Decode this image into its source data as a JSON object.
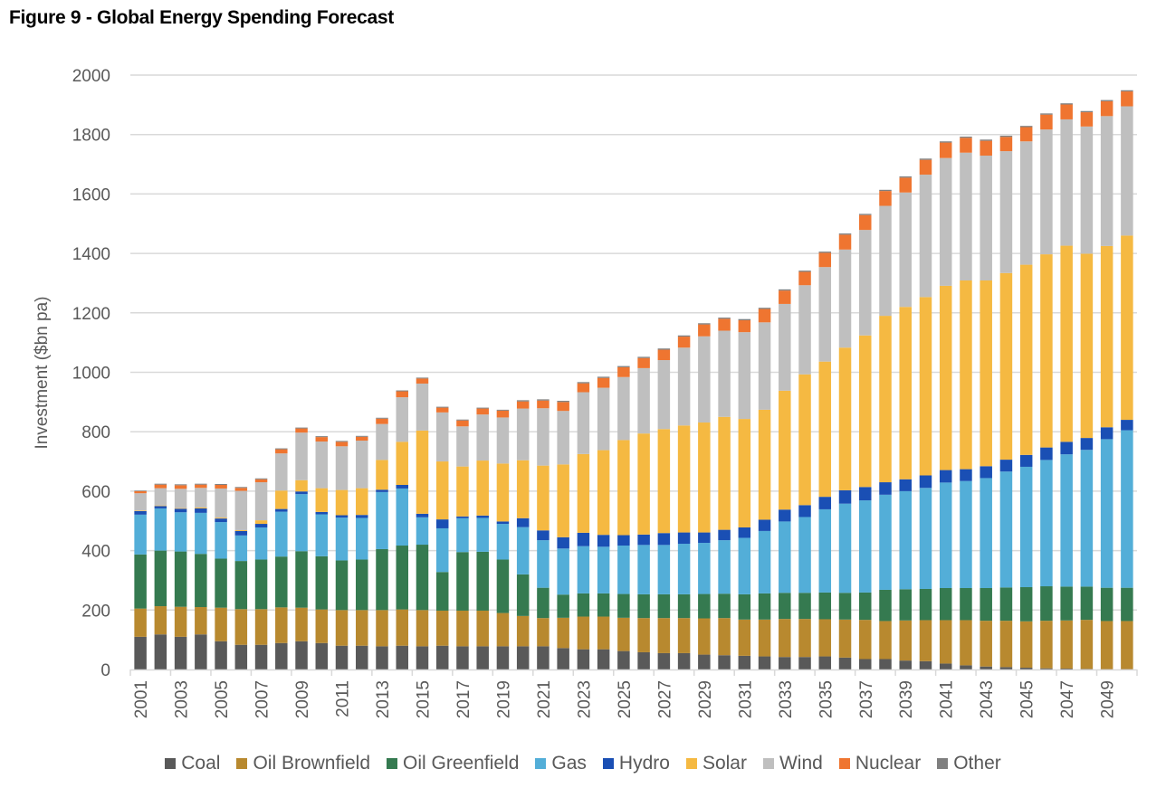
{
  "chart_data": {
    "type": "bar",
    "stacked": true,
    "title": "Figure 9 - Global Energy Spending Forecast",
    "xlabel": "",
    "ylabel": "Investment ($bn pa)",
    "ylim": [
      0,
      2000
    ],
    "yticks": [
      0,
      200,
      400,
      600,
      800,
      1000,
      1200,
      1400,
      1600,
      1800,
      2000
    ],
    "grid": true,
    "legend_position": "bottom",
    "categories": [
      "2001",
      "2002",
      "2003",
      "2004",
      "2005",
      "2006",
      "2007",
      "2008",
      "2009",
      "2010",
      "2011",
      "2012",
      "2013",
      "2014",
      "2015",
      "2016",
      "2017",
      "2018",
      "2019",
      "2020",
      "2021",
      "2022",
      "2023",
      "2024",
      "2025",
      "2026",
      "2027",
      "2028",
      "2029",
      "2030",
      "2031",
      "2032",
      "2033",
      "2034",
      "2035",
      "2036",
      "2037",
      "2038",
      "2039",
      "2040",
      "2041",
      "2042",
      "2043",
      "2044",
      "2045",
      "2046",
      "2047",
      "2048",
      "2049",
      "2050"
    ],
    "xtick_labels": [
      "2001",
      "2003",
      "2005",
      "2007",
      "2009",
      "2011",
      "2013",
      "2015",
      "2017",
      "2019",
      "2021",
      "2023",
      "2025",
      "2027",
      "2029",
      "2031",
      "2033",
      "2035",
      "2037",
      "2039",
      "2041",
      "2043",
      "2045",
      "2047",
      "2049"
    ],
    "series": [
      {
        "name": "Coal",
        "color": "#595959",
        "values": [
          110,
          118,
          110,
          118,
          95,
          83,
          83,
          89,
          95,
          89,
          80,
          80,
          78,
          80,
          78,
          80,
          78,
          78,
          78,
          78,
          78,
          72,
          68,
          68,
          62,
          58,
          55,
          55,
          50,
          48,
          46,
          44,
          42,
          42,
          44,
          40,
          35,
          35,
          30,
          28,
          20,
          14,
          10,
          8,
          6,
          4,
          3,
          2,
          1,
          1
        ]
      },
      {
        "name": "Oil Brownfield",
        "color": "#B8892F",
        "values": [
          95,
          95,
          101,
          92,
          113,
          120,
          120,
          120,
          113,
          113,
          120,
          120,
          122,
          122,
          122,
          118,
          120,
          120,
          112,
          102,
          95,
          102,
          110,
          110,
          112,
          115,
          118,
          118,
          122,
          125,
          122,
          124,
          128,
          128,
          125,
          128,
          132,
          128,
          135,
          138,
          146,
          152,
          154,
          156,
          156,
          160,
          162,
          165,
          162,
          162
        ]
      },
      {
        "name": "Oil Greenfield",
        "color": "#357A50",
        "values": [
          182,
          187,
          186,
          179,
          165,
          162,
          167,
          171,
          190,
          179,
          167,
          170,
          205,
          215,
          220,
          130,
          197,
          198,
          180,
          140,
          102,
          78,
          78,
          78,
          80,
          80,
          80,
          80,
          82,
          82,
          85,
          88,
          88,
          88,
          90,
          90,
          92,
          105,
          105,
          105,
          108,
          108,
          110,
          112,
          115,
          116,
          114,
          112,
          112,
          112
        ]
      },
      {
        "name": "Gas",
        "color": "#53AED8",
        "values": [
          134,
          142,
          132,
          138,
          123,
          86,
          108,
          151,
          192,
          141,
          144,
          140,
          192,
          192,
          92,
          147,
          114,
          114,
          120,
          159,
          160,
          155,
          159,
          157,
          163,
          166,
          166,
          170,
          172,
          180,
          190,
          210,
          240,
          255,
          280,
          300,
          310,
          320,
          330,
          340,
          355,
          360,
          370,
          390,
          405,
          425,
          445,
          460,
          500,
          530
        ]
      },
      {
        "name": "Hydro",
        "color": "#1A4FB4",
        "values": [
          12,
          8,
          12,
          15,
          12,
          15,
          12,
          9,
          9,
          8,
          8,
          10,
          8,
          12,
          12,
          30,
          6,
          8,
          8,
          30,
          33,
          38,
          45,
          40,
          35,
          35,
          40,
          38,
          35,
          35,
          35,
          38,
          40,
          40,
          42,
          45,
          45,
          42,
          40,
          42,
          42,
          40,
          40,
          40,
          40,
          42,
          42,
          40,
          40,
          35
        ]
      },
      {
        "name": "Solar",
        "color": "#F5B942",
        "values": [
          2,
          2,
          2,
          3,
          3,
          3,
          12,
          62,
          38,
          80,
          85,
          90,
          100,
          145,
          280,
          195,
          168,
          185,
          195,
          195,
          218,
          245,
          265,
          285,
          320,
          340,
          350,
          360,
          370,
          380,
          365,
          370,
          400,
          440,
          455,
          480,
          510,
          560,
          580,
          600,
          620,
          635,
          625,
          628,
          640,
          650,
          660,
          620,
          610,
          620
        ]
      },
      {
        "name": "Wind",
        "color": "#BFBFBF",
        "values": [
          58,
          58,
          65,
          66,
          98,
          132,
          128,
          125,
          160,
          157,
          147,
          160,
          121,
          150,
          158,
          165,
          135,
          155,
          155,
          174,
          193,
          180,
          208,
          210,
          212,
          220,
          232,
          262,
          290,
          290,
          292,
          294,
          292,
          300,
          318,
          330,
          355,
          370,
          385,
          412,
          430,
          430,
          420,
          410,
          415,
          420,
          425,
          428,
          437,
          435
        ]
      },
      {
        "name": "Nuclear",
        "color": "#EF7530",
        "values": [
          7,
          12,
          12,
          11,
          12,
          10,
          10,
          14,
          14,
          15,
          15,
          13,
          18,
          20,
          17,
          16,
          20,
          20,
          23,
          24,
          26,
          30,
          30,
          33,
          33,
          34,
          35,
          37,
          40,
          40,
          40,
          45,
          45,
          45,
          48,
          50,
          50,
          50,
          50,
          50,
          52,
          50,
          50,
          48,
          48,
          50,
          50,
          48,
          50,
          50
        ]
      },
      {
        "name": "Other",
        "color": "#7F7F7F",
        "values": [
          2,
          3,
          3,
          3,
          3,
          3,
          3,
          3,
          3,
          3,
          3,
          3,
          3,
          3,
          3,
          3,
          3,
          3,
          3,
          4,
          4,
          4,
          4,
          4,
          4,
          4,
          4,
          4,
          4,
          4,
          4,
          4,
          4,
          4,
          4,
          4,
          4,
          4,
          4,
          4,
          4,
          4,
          4,
          4,
          4,
          4,
          4,
          4,
          4,
          4
        ]
      }
    ]
  }
}
